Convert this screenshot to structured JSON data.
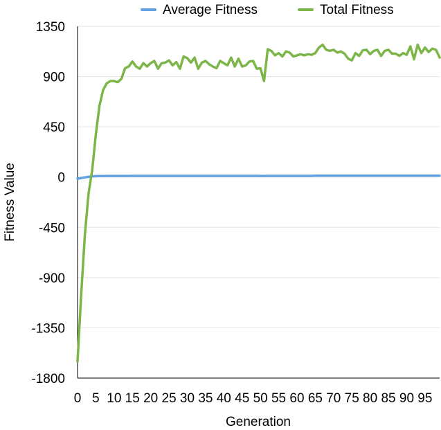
{
  "chart_data": {
    "type": "line",
    "title": "",
    "xlabel": "Generation",
    "ylabel": "Fitness Value",
    "xlim": [
      0,
      99
    ],
    "ylim": [
      -1800,
      1350
    ],
    "y_ticks": [
      1350,
      900,
      450,
      0,
      -450,
      -900,
      -1350,
      -1800
    ],
    "y_tick_labels": [
      "1350",
      "900",
      "450",
      "0",
      "-450",
      "-900",
      "-1350",
      "-1800"
    ],
    "x_ticks": [
      0,
      5,
      10,
      15,
      20,
      25,
      30,
      35,
      40,
      45,
      50,
      55,
      60,
      65,
      70,
      75,
      80,
      85,
      90,
      95
    ],
    "x_tick_labels": [
      "0",
      "5",
      "10",
      "15",
      "20",
      "25",
      "30",
      "35",
      "40",
      "45",
      "50",
      "55",
      "60",
      "65",
      "70",
      "75",
      "80",
      "85",
      "90",
      "95"
    ],
    "grid": "horizontal",
    "legend_position": "top",
    "series": [
      {
        "name": "Average Fitness",
        "color": "#62a2e2",
        "values": [
          -15,
          -8,
          -3,
          2,
          6,
          8,
          9,
          9,
          10,
          10,
          10,
          10,
          10,
          10,
          10,
          11,
          11,
          11,
          11,
          11,
          11,
          11,
          11,
          11,
          11,
          11,
          11,
          11,
          11,
          11,
          11,
          11,
          11,
          11,
          11,
          11,
          11,
          11,
          11,
          11,
          11,
          11,
          11,
          11,
          11,
          11,
          11,
          11,
          11,
          11,
          10,
          10,
          11,
          11,
          11,
          11,
          11,
          11,
          11,
          11,
          11,
          11,
          11,
          11,
          11,
          12,
          12,
          12,
          12,
          12,
          12,
          12,
          12,
          12,
          12,
          12,
          12,
          12,
          12,
          12,
          12,
          12,
          12,
          12,
          12,
          12,
          12,
          12,
          12,
          12,
          12,
          12,
          12,
          12,
          12,
          12,
          12,
          12,
          12,
          12
        ]
      },
      {
        "name": "Total Fitness",
        "color": "#7cb548",
        "values": [
          -1650,
          -1050,
          -520,
          -150,
          60,
          380,
          640,
          780,
          840,
          860,
          860,
          850,
          880,
          975,
          990,
          1035,
          990,
          970,
          1020,
          990,
          1020,
          1040,
          970,
          1020,
          1025,
          1045,
          1000,
          1030,
          970,
          1080,
          1065,
          1025,
          1070,
          970,
          1025,
          1040,
          1010,
          990,
          975,
          1040,
          1020,
          1000,
          1070,
          990,
          1060,
          990,
          1000,
          1035,
          1040,
          970,
          975,
          860,
          1145,
          1130,
          1090,
          1110,
          1080,
          1125,
          1115,
          1080,
          1090,
          1100,
          1090,
          1100,
          1095,
          1110,
          1160,
          1185,
          1140,
          1130,
          1140,
          1115,
          1125,
          1105,
          1060,
          1045,
          1110,
          1085,
          1135,
          1140,
          1100,
          1130,
          1140,
          1085,
          1130,
          1140,
          1105,
          1105,
          1085,
          1110,
          1095,
          1170,
          1055,
          1185,
          1110,
          1160,
          1120,
          1150,
          1140,
          1070
        ]
      }
    ]
  }
}
